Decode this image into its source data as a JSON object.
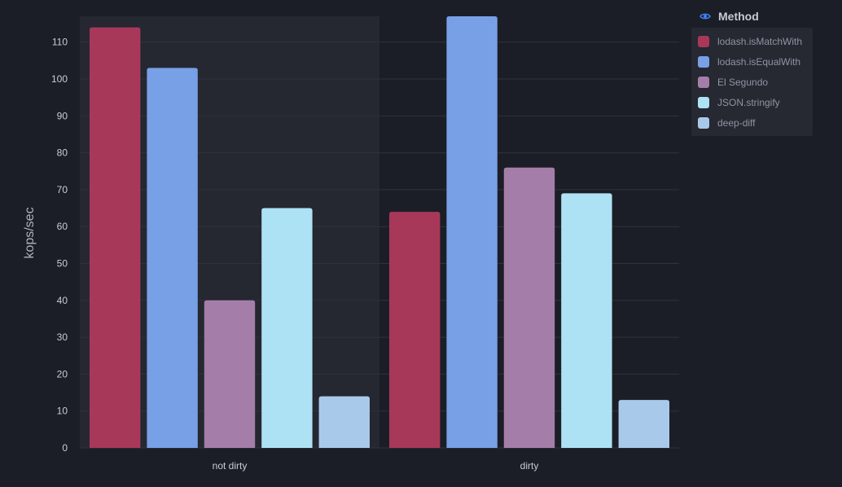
{
  "legend": {
    "title": "Method",
    "icon": "eye-icon",
    "accent": "#3b82f6"
  },
  "chart_data": {
    "type": "bar",
    "ylabel": "kops/sec",
    "xlabel": "",
    "ylim": [
      0,
      117
    ],
    "yticks": [
      0,
      10,
      20,
      30,
      40,
      50,
      60,
      70,
      80,
      90,
      100,
      110
    ],
    "grid": true,
    "legend_position": "right",
    "highlighted_category": "not dirty",
    "categories": [
      "not dirty",
      "dirty"
    ],
    "series": [
      {
        "name": "lodash.isMatchWith",
        "color": "#a8385a",
        "values": [
          114,
          64
        ]
      },
      {
        "name": "lodash.isEqualWith",
        "color": "#78a0e6",
        "values": [
          103,
          117
        ]
      },
      {
        "name": "El Segundo",
        "color": "#a47ea8",
        "values": [
          40,
          76
        ]
      },
      {
        "name": "JSON.stringify",
        "color": "#ade2f4",
        "values": [
          65,
          69
        ]
      },
      {
        "name": "deep-diff",
        "color": "#a9c9ea",
        "values": [
          14,
          13
        ]
      }
    ]
  }
}
